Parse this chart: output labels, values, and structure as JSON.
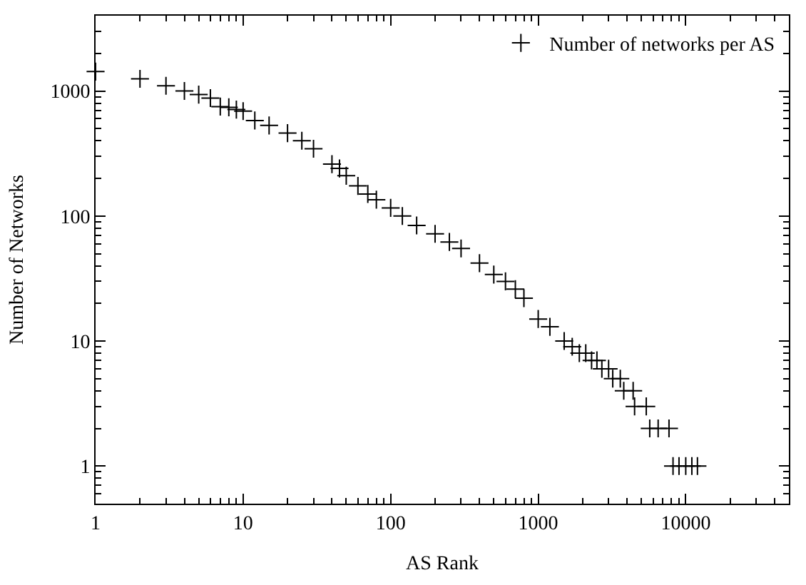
{
  "chart_data": {
    "type": "scatter",
    "xlabel": "AS Rank",
    "ylabel": "Number of Networks",
    "x": [
      1,
      2,
      3,
      4,
      5,
      6,
      7,
      8,
      9,
      10,
      12,
      15,
      20,
      25,
      30,
      40,
      45,
      50,
      60,
      70,
      80,
      100,
      120,
      150,
      200,
      250,
      300,
      400,
      500,
      600,
      700,
      800,
      1000,
      1200,
      1500,
      1700,
      1900,
      2100,
      2300,
      2500,
      2700,
      3000,
      3200,
      3600,
      3800,
      4400,
      4500,
      5400,
      5700,
      6500,
      7700,
      8200,
      9000,
      10000,
      11000,
      12000
    ],
    "series": [
      {
        "name": "Number of networks per AS",
        "color": "#000000",
        "values": [
          1430,
          1250,
          1100,
          1000,
          935,
          877,
          750,
          740,
          710,
          690,
          580,
          530,
          460,
          400,
          345,
          260,
          240,
          210,
          174,
          150,
          135,
          116,
          100,
          84,
          72,
          62,
          55,
          42,
          34,
          30,
          26,
          22,
          15,
          13,
          10,
          9,
          8,
          8,
          7,
          7,
          6,
          6,
          5,
          5,
          4,
          4,
          3,
          3,
          2,
          2,
          2,
          1,
          1,
          1,
          1,
          1
        ]
      }
    ],
    "log": "xy",
    "xlim": [
      1,
      50000
    ],
    "ylim": [
      0.5,
      4000
    ],
    "xticks": [
      1,
      10,
      100,
      1000,
      10000
    ],
    "yticks": [
      1,
      10,
      100,
      1000
    ],
    "marker": "cross",
    "legend": "top right"
  }
}
